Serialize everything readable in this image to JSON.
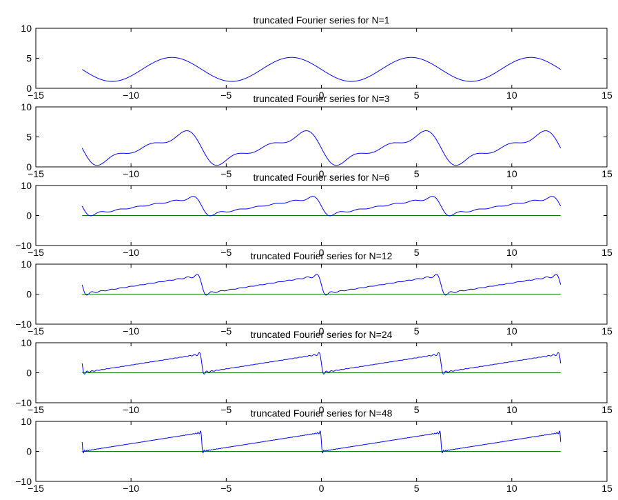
{
  "figure": {
    "background": "#ffffff",
    "axes_color": "#000000",
    "series_color": "#0000ff",
    "baseline_color": "#008000"
  },
  "chart_data": [
    {
      "type": "line",
      "title": "truncated Fourier series for N=1",
      "N": 1,
      "xlim": [
        -15,
        15
      ],
      "ylim": [
        0,
        10
      ],
      "xticks": [
        -15,
        -10,
        -5,
        0,
        5,
        10,
        15
      ],
      "yticks": [
        0,
        5,
        10
      ],
      "xticklabels": [
        "−15",
        "−10",
        "−5",
        "0",
        "5",
        "10",
        "15"
      ],
      "yticklabels": [
        "0",
        "5",
        "10"
      ],
      "grid": false,
      "series": [
        {
          "kind": "truncated-fourier-sawtooth",
          "x_range": [
            -12.566,
            12.566
          ],
          "period": 6.283,
          "mean": 3.1416,
          "harmonics": 1
        },
        {
          "kind": "constant",
          "value": 0,
          "x_range": [
            -12.566,
            12.566
          ]
        }
      ]
    },
    {
      "type": "line",
      "title": "truncated Fourier series for N=3",
      "N": 3,
      "xlim": [
        -15,
        15
      ],
      "ylim": [
        0,
        10
      ],
      "xticks": [
        -15,
        -10,
        -5,
        0,
        5,
        10,
        15
      ],
      "yticks": [
        0,
        5,
        10
      ],
      "xticklabels": [
        "−15",
        "−10",
        "−5",
        "0",
        "5",
        "10",
        "15"
      ],
      "yticklabels": [
        "0",
        "5",
        "10"
      ],
      "grid": false,
      "series": [
        {
          "kind": "truncated-fourier-sawtooth",
          "x_range": [
            -12.566,
            12.566
          ],
          "period": 6.283,
          "mean": 3.1416,
          "harmonics": 3
        },
        {
          "kind": "constant",
          "value": 0,
          "x_range": [
            -12.566,
            12.566
          ]
        }
      ]
    },
    {
      "type": "line",
      "title": "truncated Fourier series for N=6",
      "N": 6,
      "xlim": [
        -15,
        15
      ],
      "ylim": [
        -10,
        10
      ],
      "xticks": [
        -15,
        -10,
        -5,
        0,
        5,
        10,
        15
      ],
      "yticks": [
        -10,
        0,
        10
      ],
      "xticklabels": [
        "−15",
        "−10",
        "−5",
        "0",
        "5",
        "10",
        "15"
      ],
      "yticklabels": [
        "−10",
        "0",
        "10"
      ],
      "grid": false,
      "series": [
        {
          "kind": "truncated-fourier-sawtooth",
          "x_range": [
            -12.566,
            12.566
          ],
          "period": 6.283,
          "mean": 3.1416,
          "harmonics": 6
        },
        {
          "kind": "constant",
          "value": 0,
          "x_range": [
            -12.566,
            12.566
          ]
        }
      ]
    },
    {
      "type": "line",
      "title": "truncated Fourier series for N=12",
      "N": 12,
      "xlim": [
        -15,
        15
      ],
      "ylim": [
        -10,
        10
      ],
      "xticks": [
        -15,
        -10,
        -5,
        0,
        5,
        10,
        15
      ],
      "yticks": [
        -10,
        0,
        10
      ],
      "xticklabels": [
        "−15",
        "−10",
        "−5",
        "0",
        "5",
        "10",
        "15"
      ],
      "yticklabels": [
        "−10",
        "0",
        "10"
      ],
      "grid": false,
      "series": [
        {
          "kind": "truncated-fourier-sawtooth",
          "x_range": [
            -12.566,
            12.566
          ],
          "period": 6.283,
          "mean": 3.1416,
          "harmonics": 12
        },
        {
          "kind": "constant",
          "value": 0,
          "x_range": [
            -12.566,
            12.566
          ]
        }
      ]
    },
    {
      "type": "line",
      "title": "truncated Fourier series for N=24",
      "N": 24,
      "xlim": [
        -15,
        15
      ],
      "ylim": [
        -10,
        10
      ],
      "xticks": [
        -15,
        -10,
        -5,
        0,
        5,
        10,
        15
      ],
      "yticks": [
        -10,
        0,
        10
      ],
      "xticklabels": [
        "−15",
        "−10",
        "−5",
        "0",
        "5",
        "10",
        "15"
      ],
      "yticklabels": [
        "−10",
        "0",
        "10"
      ],
      "grid": false,
      "series": [
        {
          "kind": "truncated-fourier-sawtooth",
          "x_range": [
            -12.566,
            12.566
          ],
          "period": 6.283,
          "mean": 3.1416,
          "harmonics": 24
        },
        {
          "kind": "constant",
          "value": 0,
          "x_range": [
            -12.566,
            12.566
          ]
        }
      ]
    },
    {
      "type": "line",
      "title": "truncated Fourier series for N=48",
      "N": 48,
      "xlim": [
        -15,
        15
      ],
      "ylim": [
        -10,
        10
      ],
      "xticks": [
        -15,
        -10,
        -5,
        0,
        5,
        10,
        15
      ],
      "yticks": [
        -10,
        0,
        10
      ],
      "xticklabels": [
        "−15",
        "−10",
        "−5",
        "0",
        "5",
        "10",
        "15"
      ],
      "yticklabels": [
        "−10",
        "0",
        "10"
      ],
      "grid": false,
      "series": [
        {
          "kind": "truncated-fourier-sawtooth",
          "x_range": [
            -12.566,
            12.566
          ],
          "period": 6.283,
          "mean": 3.1416,
          "harmonics": 48
        },
        {
          "kind": "constant",
          "value": 0,
          "x_range": [
            -12.566,
            12.566
          ]
        }
      ]
    }
  ]
}
